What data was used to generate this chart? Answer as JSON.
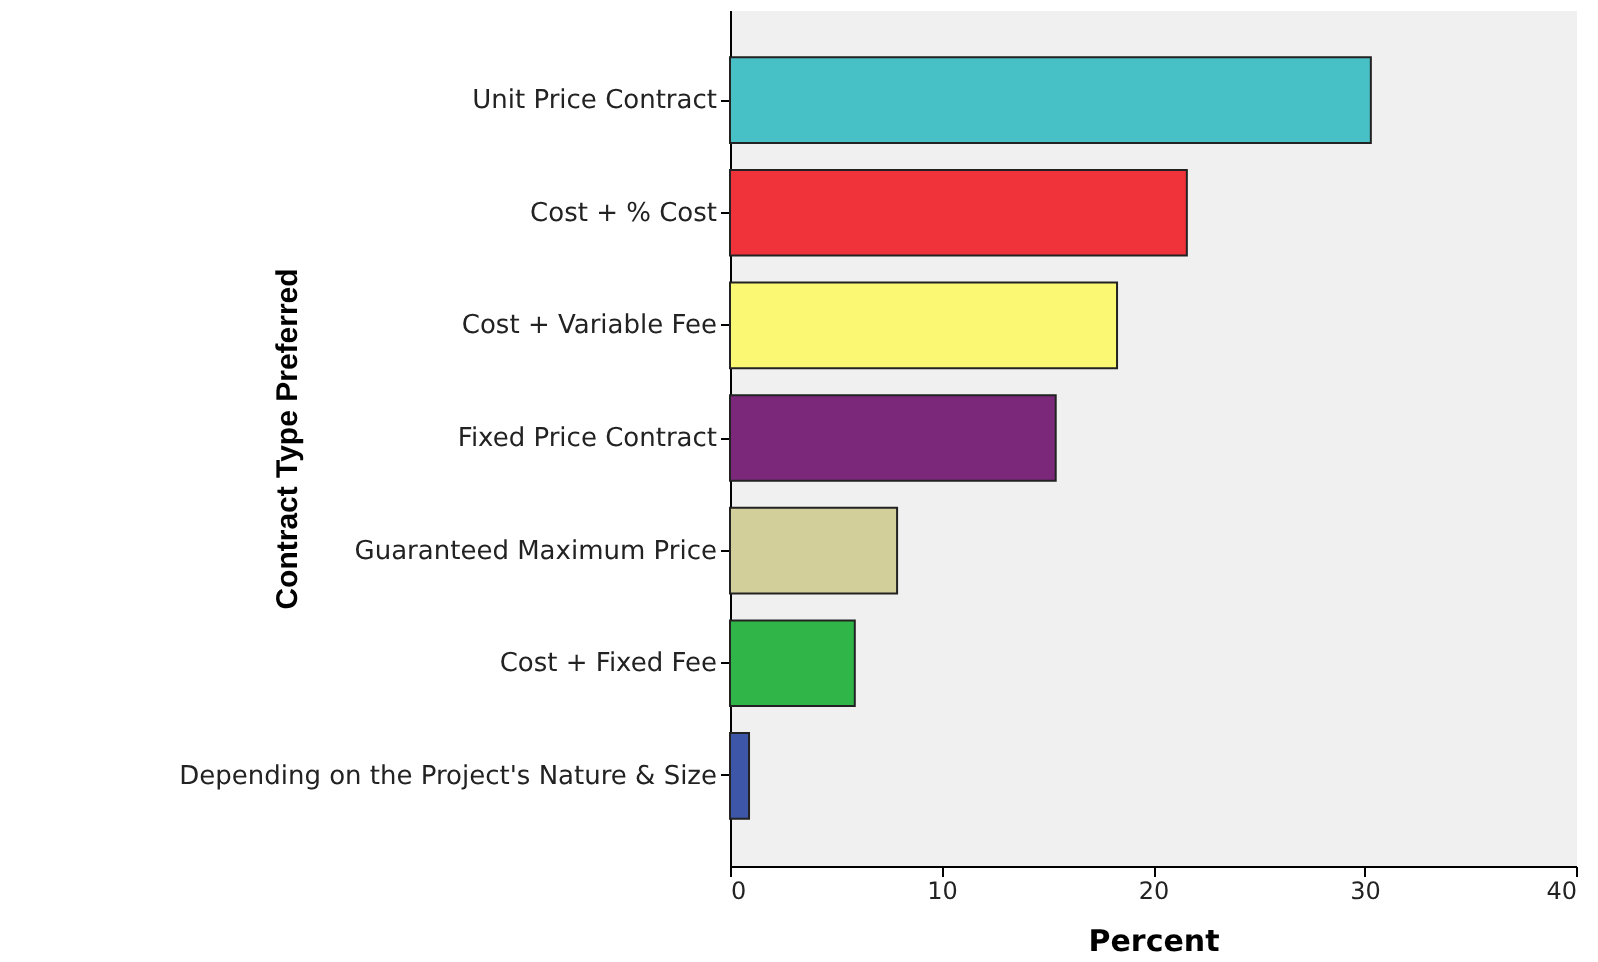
{
  "chart_data": {
    "type": "bar",
    "orientation": "horizontal",
    "xlabel": "Percent",
    "ylabel": "Contract Type Preferred",
    "categories": [
      "Unit Price Contract",
      "Cost + % Cost",
      "Cost + Variable Fee",
      "Fixed Price Contract",
      "Guaranteed Maximum Price",
      "Cost + Fixed Fee",
      "Depending on the Project's Nature & Size"
    ],
    "values": [
      30.3,
      21.6,
      18.3,
      15.4,
      7.9,
      5.9,
      0.9
    ],
    "colors": [
      "#48c1c6",
      "#f0333a",
      "#fbf874",
      "#7b287b",
      "#d3cf9b",
      "#2fb548",
      "#3d56a8"
    ],
    "xlim": [
      0,
      40
    ],
    "xticks": [
      0,
      10,
      20,
      30,
      40
    ],
    "grid": false
  }
}
